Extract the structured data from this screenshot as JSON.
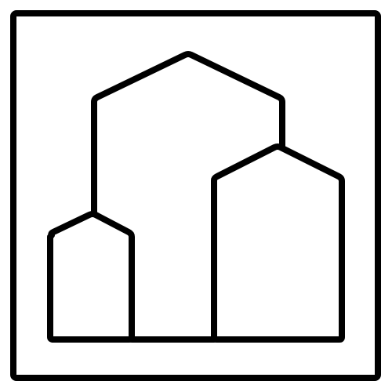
{
  "icon": {
    "name": "buildings-icon",
    "description_visible_text": "",
    "stroke_color": "#000000",
    "fill_color": "#ffffff",
    "background_color": "#ffffff"
  }
}
